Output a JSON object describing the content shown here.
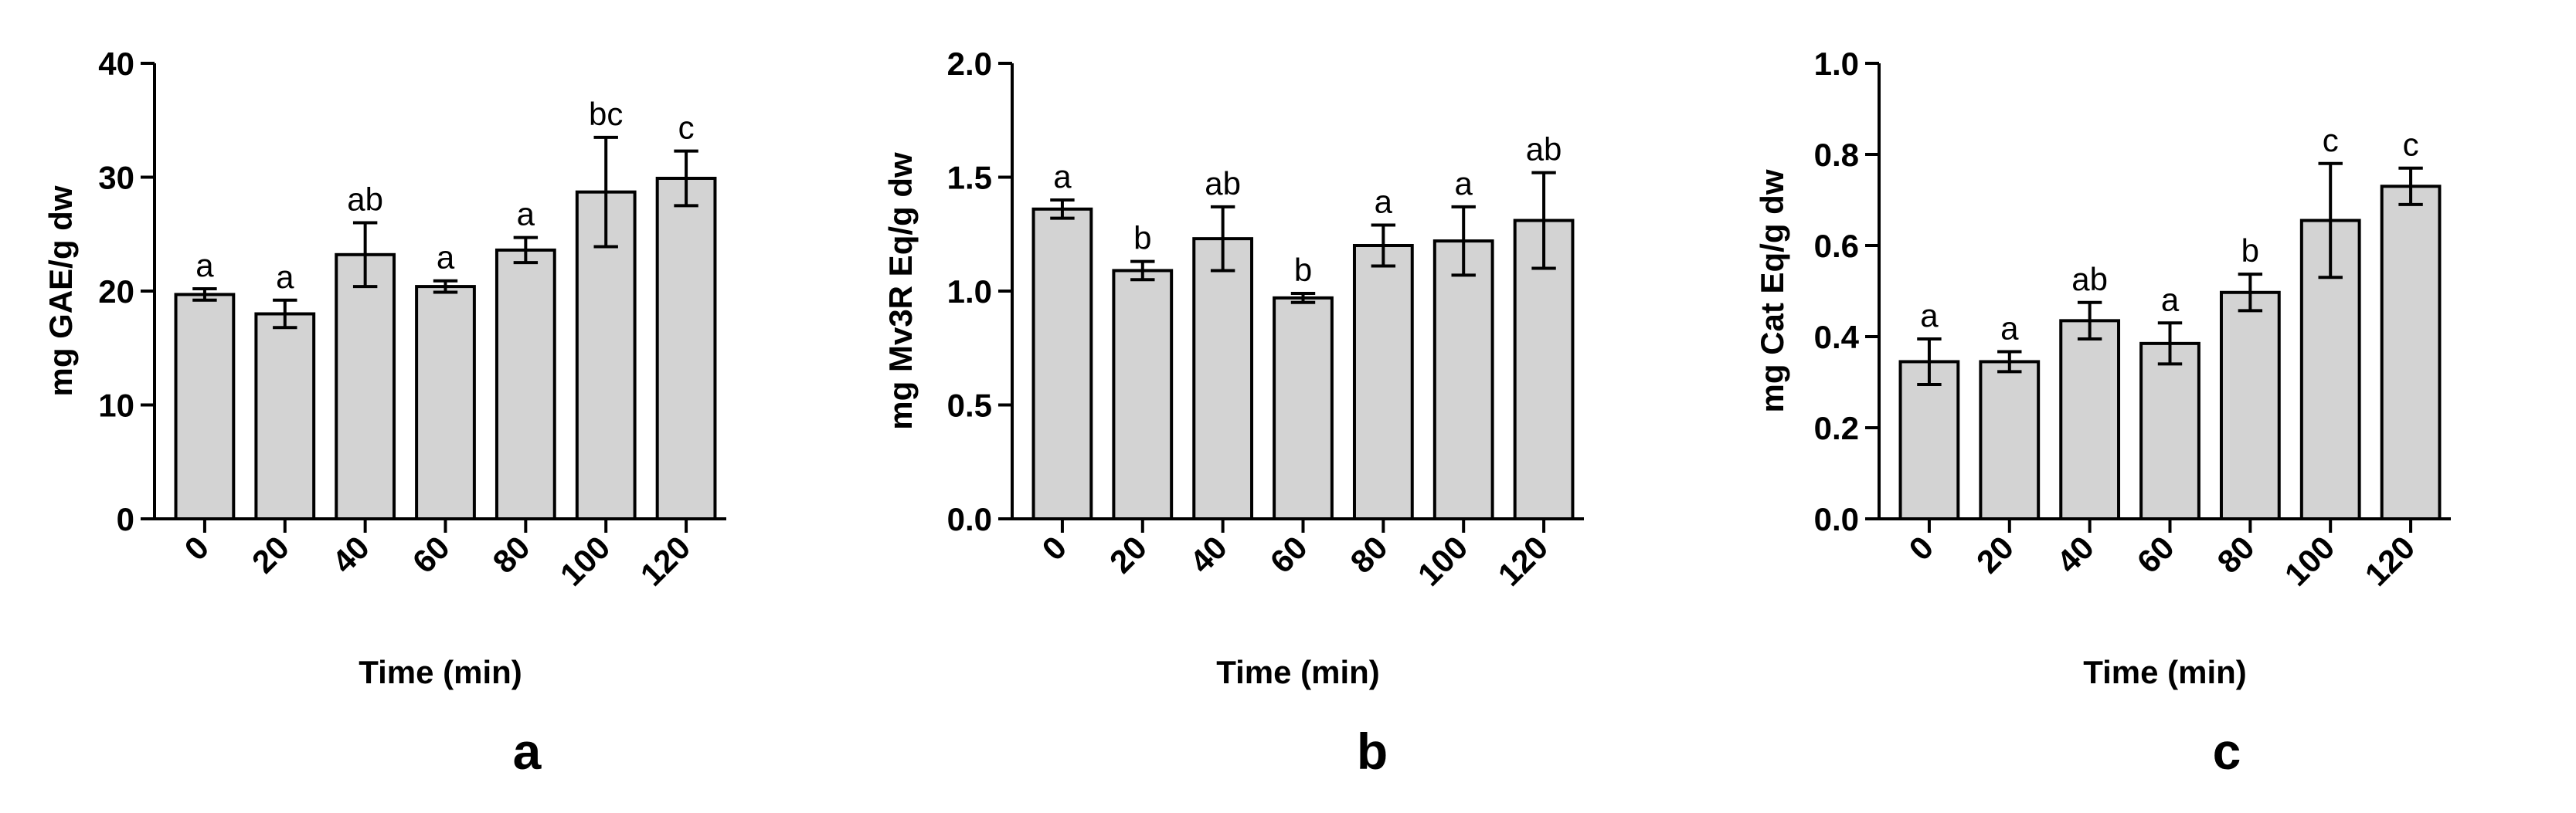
{
  "chart_data": [
    {
      "type": "bar",
      "panel_label": "a",
      "categories": [
        "0",
        "20",
        "40",
        "60",
        "80",
        "100",
        "120"
      ],
      "values": [
        19.7,
        18.0,
        23.2,
        20.4,
        23.6,
        28.7,
        29.9
      ],
      "errors": [
        0.5,
        1.2,
        2.8,
        0.5,
        1.1,
        4.8,
        2.4
      ],
      "significance": [
        "a",
        "a",
        "ab",
        "a",
        "a",
        "bc",
        "c"
      ],
      "ylabel": "mg GAE/g dw",
      "xlabel": "Time (min)",
      "ylim": [
        0,
        40
      ],
      "yticks": [
        0,
        10,
        20,
        30,
        40
      ],
      "ytick_labels": [
        "0",
        "10",
        "20",
        "30",
        "40"
      ]
    },
    {
      "type": "bar",
      "panel_label": "b",
      "categories": [
        "0",
        "20",
        "40",
        "60",
        "80",
        "100",
        "120"
      ],
      "values": [
        1.36,
        1.09,
        1.23,
        0.97,
        1.2,
        1.22,
        1.31
      ],
      "errors": [
        0.04,
        0.04,
        0.14,
        0.02,
        0.09,
        0.15,
        0.21
      ],
      "significance": [
        "a",
        "b",
        "ab",
        "b",
        "a",
        "a",
        "ab"
      ],
      "ylabel": "mg Mv3R Eq/g dw",
      "xlabel": "Time (min)",
      "ylim": [
        0,
        2.0
      ],
      "yticks": [
        0,
        0.5,
        1.0,
        1.5,
        2.0
      ],
      "ytick_labels": [
        "0.0",
        "0.5",
        "1.0",
        "1.5",
        "2.0"
      ]
    },
    {
      "type": "bar",
      "panel_label": "c",
      "categories": [
        "0",
        "20",
        "40",
        "60",
        "80",
        "100",
        "120"
      ],
      "values": [
        0.345,
        0.345,
        0.435,
        0.385,
        0.497,
        0.655,
        0.73
      ],
      "errors": [
        0.05,
        0.022,
        0.04,
        0.045,
        0.04,
        0.125,
        0.04
      ],
      "significance": [
        "a",
        "a",
        "ab",
        "a",
        "b",
        "c",
        "c"
      ],
      "ylabel": "mg Cat Eq/g dw",
      "xlabel": "Time (min)",
      "ylim": [
        0,
        1.0
      ],
      "yticks": [
        0,
        0.2,
        0.4,
        0.6,
        0.8,
        1.0
      ],
      "ytick_labels": [
        "0.0",
        "0.2",
        "0.4",
        "0.6",
        "0.8",
        "1.0"
      ]
    }
  ],
  "colors": {
    "bar_fill": "#d3d3d3",
    "stroke": "#000000",
    "background": "#ffffff"
  }
}
